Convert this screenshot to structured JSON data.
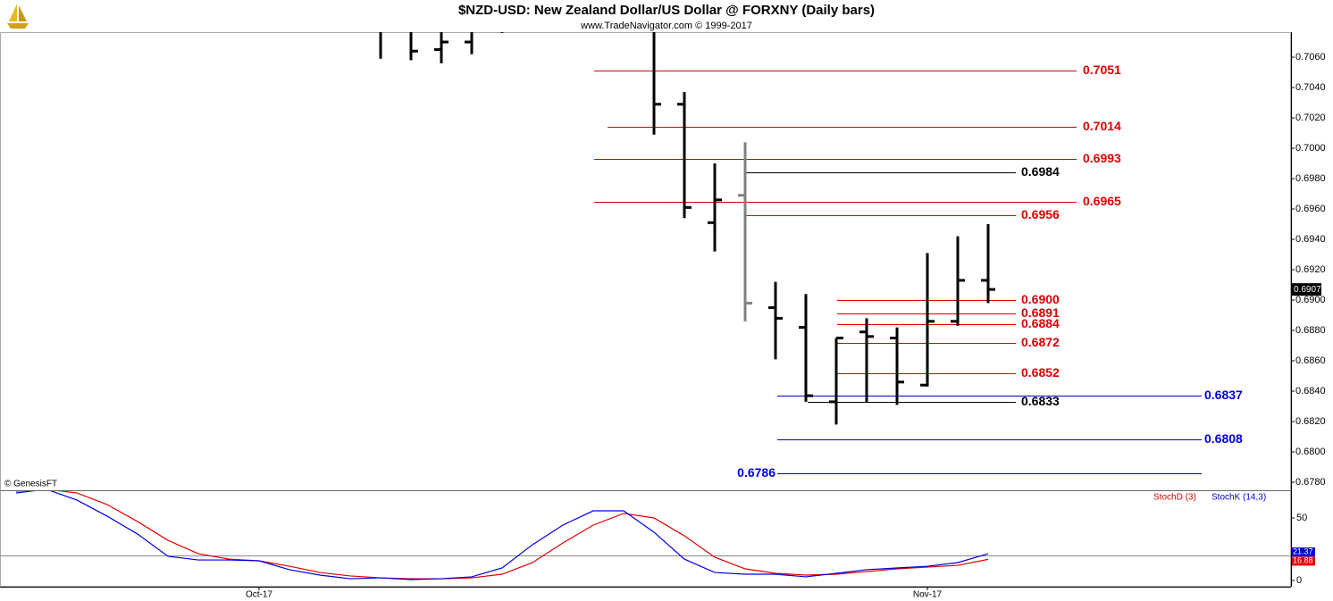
{
  "chart_data": [
    {
      "type": "ohlc",
      "title": "$NZD-USD:  New Zealand Dollar/US Dollar @ FORXNY  (Daily bars)",
      "subtitle": "www.TradeNavigator.com © 1999-2017",
      "annotation": "© GenesisFT",
      "ylim": [
        0.67753,
        0.70765
      ],
      "yticks": [
        {
          "value": 0.678,
          "label": "0.6780"
        },
        {
          "value": 0.68,
          "label": "0.6800"
        },
        {
          "value": 0.682,
          "label": "0.6820"
        },
        {
          "value": 0.684,
          "label": "0.6840"
        },
        {
          "value": 0.686,
          "label": "0.6860"
        },
        {
          "value": 0.688,
          "label": "0.6880"
        },
        {
          "value": 0.69,
          "label": "0.6900"
        },
        {
          "value": 0.692,
          "label": "0.6920"
        },
        {
          "value": 0.694,
          "label": "0.6940"
        },
        {
          "value": 0.696,
          "label": "0.6960"
        },
        {
          "value": 0.698,
          "label": "0.6980"
        },
        {
          "value": 0.7,
          "label": "0.7000"
        },
        {
          "value": 0.702,
          "label": "0.7020"
        },
        {
          "value": 0.704,
          "label": "0.7040"
        },
        {
          "value": 0.706,
          "label": "0.7060"
        }
      ],
      "open": [
        null,
        null,
        null,
        null,
        null,
        null,
        null,
        null,
        null,
        null,
        null,
        null,
        null,
        null,
        0.7065,
        0.707,
        null,
        null,
        null,
        null,
        null,
        null,
        0.7029,
        0.6951,
        0.6969,
        0.6895,
        0.6882,
        0.6833,
        0.6879,
        0.6875,
        0.6844,
        0.6886,
        0.6913
      ],
      "high": [
        null,
        null,
        null,
        null,
        null,
        null,
        null,
        null,
        null,
        null,
        null,
        null,
        null,
        null,
        null,
        null,
        null,
        null,
        null,
        null,
        null,
        null,
        0.7037,
        0.699,
        0.7004,
        0.6912,
        0.6904,
        0.6875,
        0.6888,
        0.6882,
        0.6931,
        0.6942,
        0.695
      ],
      "low": [
        null,
        null,
        null,
        null,
        null,
        null,
        null,
        null,
        null,
        null,
        null,
        null,
        0.7059,
        0.7058,
        0.7056,
        0.7062,
        0.7076,
        null,
        null,
        null,
        null,
        0.7009,
        0.6954,
        0.6932,
        0.6886,
        0.6861,
        0.6833,
        0.6818,
        0.6833,
        0.6831,
        0.6843,
        0.6883,
        0.6898
      ],
      "close": [
        null,
        null,
        null,
        null,
        null,
        null,
        null,
        null,
        null,
        null,
        null,
        null,
        null,
        0.7064,
        0.707,
        null,
        null,
        null,
        null,
        null,
        null,
        0.7029,
        0.6961,
        0.6966,
        0.6898,
        0.6888,
        0.6837,
        0.6875,
        0.6876,
        0.6846,
        0.6886,
        0.6913,
        0.6907
      ],
      "bar_colors": [
        "#000000",
        "#000000",
        "#000000",
        "#000000",
        "#000000",
        "#000000",
        "#000000",
        "#000000",
        "#000000",
        "#000000",
        "#000000",
        "#000000",
        "#000000",
        "#000000",
        "#000000",
        "#000000",
        "#000000",
        "#000000",
        "#000000",
        "#000000",
        "#000000",
        "#000000",
        "#000000",
        "#000000",
        "#808080",
        "#000000",
        "#000000",
        "#000000",
        "#000000",
        "#000000",
        "#000000",
        "#000000",
        "#000000"
      ],
      "last_label_color": "#000000",
      "levels": [
        {
          "value": 0.7051,
          "color": "#e00000"
        },
        {
          "value": 0.7014,
          "color": "#e00000"
        },
        {
          "value": 0.6993,
          "color": "#e00000"
        },
        {
          "value": 0.6984,
          "color": "#000000"
        },
        {
          "value": 0.6965,
          "color": "#e00000"
        },
        {
          "value": 0.6956,
          "color": "#e00000"
        },
        {
          "value": 0.69,
          "label": "0.6900",
          "color": "#e00000"
        },
        {
          "value": 0.6891,
          "color": "#e00000"
        },
        {
          "value": 0.6884,
          "color": "#e00000"
        },
        {
          "value": 0.6872,
          "color": "#e00000"
        },
        {
          "value": 0.6852,
          "color": "#e00000"
        },
        {
          "value": 0.6833,
          "color": "#000000"
        },
        {
          "value": 0.6837,
          "color": "#0000e0"
        },
        {
          "value": 0.6808,
          "color": "#0000e0"
        },
        {
          "value": 0.6786,
          "color": "#0000e0"
        }
      ]
    },
    {
      "type": "line",
      "categories": [
        null,
        null,
        null,
        null,
        null,
        null,
        null,
        null,
        "Oct-17",
        null,
        null,
        null,
        null,
        null,
        null,
        null,
        null,
        null,
        null,
        null,
        null,
        null,
        null,
        null,
        null,
        null,
        null,
        null,
        null,
        null,
        "Nov-17",
        null,
        null
      ],
      "ylim": [
        -5,
        71.43
      ],
      "yticks": [
        0,
        50
      ],
      "hlines": [
        20
      ],
      "series": [
        {
          "name": "StochD (3)",
          "color": "#e00000",
          "values": [
            71.4,
            72.9,
            70.0,
            60.7,
            47.1,
            32.1,
            21.4,
            17.1,
            15.7,
            11.4,
            6.4,
            3.6,
            2.1,
            1.4,
            1.4,
            2.1,
            5.0,
            14.3,
            30.0,
            44.3,
            53.6,
            50.0,
            35.7,
            18.6,
            9.3,
            5.7,
            4.3,
            5.0,
            7.1,
            9.3,
            10.7,
            12.1,
            16.88
          ]
        },
        {
          "name": "StochK (14,3)",
          "color": "#0000e0",
          "values": [
            70.0,
            72.9,
            64.3,
            51.4,
            37.1,
            19.3,
            16.4,
            16.4,
            15.7,
            8.6,
            4.3,
            1.4,
            2.1,
            0.7,
            1.4,
            2.9,
            10.0,
            28.6,
            44.3,
            55.7,
            55.7,
            38.6,
            17.1,
            6.4,
            5.0,
            5.0,
            2.9,
            5.7,
            8.6,
            10.0,
            11.4,
            14.3,
            21.37
          ]
        }
      ]
    }
  ]
}
